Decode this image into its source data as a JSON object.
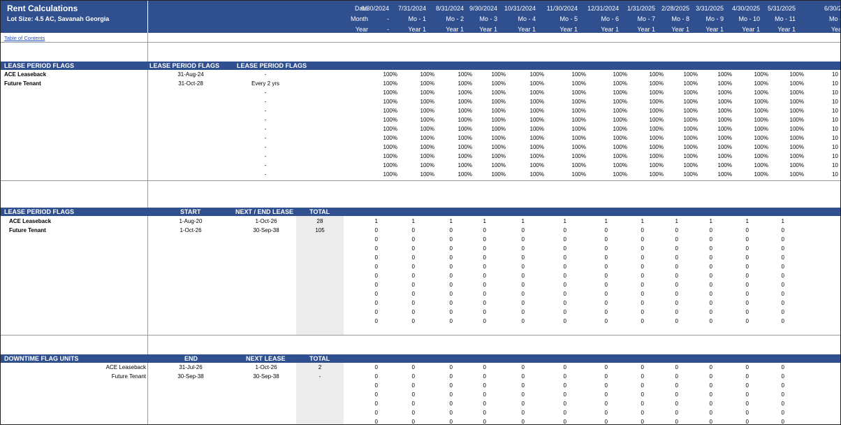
{
  "header": {
    "title": "Rent Calculations",
    "subtitle": "Lot Size: 4.5 AC, Savanah Georgia",
    "row_labels": [
      "Date",
      "Month",
      "Year"
    ],
    "columns": [
      {
        "date": "6/30/2024",
        "month": "-",
        "year": "-"
      },
      {
        "date": "7/31/2024",
        "month": "Mo - 1",
        "year": "Year 1"
      },
      {
        "date": "8/31/2024",
        "month": "Mo - 2",
        "year": "Year 1"
      },
      {
        "date": "9/30/2024",
        "month": "Mo - 3",
        "year": "Year 1"
      },
      {
        "date": "10/31/2024",
        "month": "Mo - 4",
        "year": "Year 1"
      },
      {
        "date": "11/30/2024",
        "month": "Mo - 5",
        "year": "Year 1"
      },
      {
        "date": "12/31/2024",
        "month": "Mo - 6",
        "year": "Year 1"
      },
      {
        "date": "1/31/2025",
        "month": "Mo - 7",
        "year": "Year 1"
      },
      {
        "date": "2/28/2025",
        "month": "Mo - 8",
        "year": "Year 1"
      },
      {
        "date": "3/31/2025",
        "month": "Mo - 9",
        "year": "Year 1"
      },
      {
        "date": "4/30/2025",
        "month": "Mo - 10",
        "year": "Year 1"
      },
      {
        "date": "5/31/2025",
        "month": "Mo - 11",
        "year": "Year 1"
      },
      {
        "date": "6/30/2",
        "month": "Mo -",
        "year": "Yea"
      }
    ]
  },
  "toc_link": "Table of Contents",
  "section1": {
    "heading": "LEASE PERIOD FLAGS",
    "col2": "LEASE PERIOD FLAGS",
    "col3": "LEASE PERIOD FLAGS",
    "col3_first": "-",
    "rows": [
      {
        "name": "ACE Leaseback",
        "date": "31-Aug-24",
        "flag": "-"
      },
      {
        "name": "Future Tenant",
        "date": "31-Oct-28",
        "flag": "Every 2 yrs"
      }
    ],
    "dash_rows": [
      "-",
      "-",
      "-",
      "-",
      "-",
      "-",
      "-",
      "-",
      "-",
      "-"
    ],
    "pct_value": "100%",
    "pct_partial": "10",
    "row_count": 12
  },
  "section2": {
    "heading": "LEASE PERIOD FLAGS",
    "h_start": "START",
    "h_next": "NEXT / END LEASE",
    "h_total": "TOTAL",
    "rows": [
      {
        "name": "ACE Leaseback",
        "start": "1-Aug-20",
        "next": "1-Oct-26",
        "total": "28"
      },
      {
        "name": "Future Tenant",
        "start": "1-Oct-26",
        "next": "30-Sep-38",
        "total": "105"
      }
    ],
    "first_row_values": [
      "1",
      "1",
      "1",
      "1",
      "1",
      "1",
      "1",
      "1",
      "1",
      "1",
      "1",
      "1"
    ],
    "other_value": "0",
    "row_count": 12
  },
  "section3": {
    "heading": "DOWNTIME FLAG UNITS",
    "h_end": "END",
    "h_next": "NEXT LEASE",
    "h_total": "TOTAL",
    "rows": [
      {
        "name": "ACE Leaseback",
        "end": "31-Jul-26",
        "next": "1-Oct-26",
        "total": "2"
      },
      {
        "name": "Future Tenant",
        "end": "30-Sep-38",
        "next": "30-Sep-38",
        "total": "-"
      }
    ],
    "value": "0",
    "row_count": 7
  }
}
